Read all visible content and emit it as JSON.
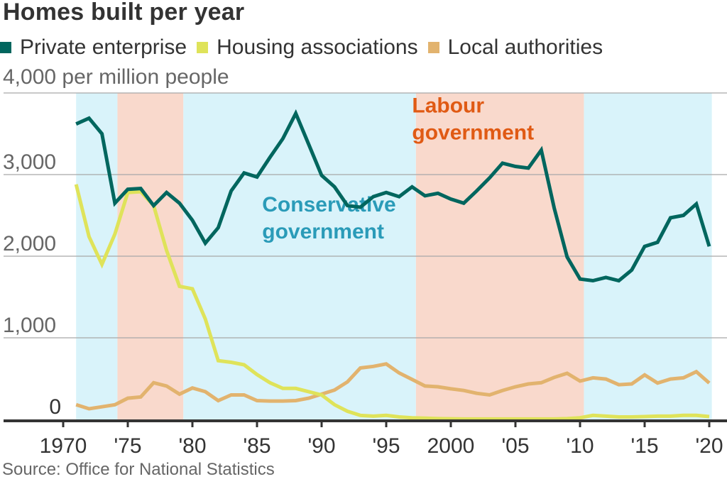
{
  "chart_data": {
    "type": "line",
    "title": "Homes built per year",
    "ylabel": "4,000 per million people",
    "xlabel": "",
    "source": "Source: Office for National Statistics",
    "xlim": [
      1970,
      2020
    ],
    "ylim": [
      0,
      4000
    ],
    "grid": true,
    "legend_position": "top",
    "y_ticks": [
      {
        "value": 0,
        "label": "0"
      },
      {
        "value": 1000,
        "label": "1,000"
      },
      {
        "value": 2000,
        "label": "2,000"
      },
      {
        "value": 3000,
        "label": "3,000"
      },
      {
        "value": 4000,
        "label": "4,000 per million people"
      }
    ],
    "x_ticks": [
      {
        "value": 1970,
        "label": "1970"
      },
      {
        "value": 1975,
        "label": "'75"
      },
      {
        "value": 1980,
        "label": "'80"
      },
      {
        "value": 1985,
        "label": "'85"
      },
      {
        "value": 1990,
        "label": "'90"
      },
      {
        "value": 1995,
        "label": "'95"
      },
      {
        "value": 2000,
        "label": "2000"
      },
      {
        "value": 2005,
        "label": "'05"
      },
      {
        "value": 2010,
        "label": "'10"
      },
      {
        "value": 2015,
        "label": "'15"
      },
      {
        "value": 2020,
        "label": "'20"
      }
    ],
    "x": [
      1971,
      1972,
      1973,
      1974,
      1975,
      1976,
      1977,
      1978,
      1979,
      1980,
      1981,
      1982,
      1983,
      1984,
      1985,
      1986,
      1987,
      1988,
      1989,
      1990,
      1991,
      1992,
      1993,
      1994,
      1995,
      1996,
      1997,
      1998,
      1999,
      2000,
      2001,
      2002,
      2003,
      2004,
      2005,
      2006,
      2007,
      2008,
      2009,
      2010,
      2011,
      2012,
      2013,
      2014,
      2015,
      2016,
      2017,
      2018,
      2019,
      2020
    ],
    "series": [
      {
        "name": "Private enterprise",
        "color": "#00665e",
        "values": [
          3620,
          3690,
          3500,
          2650,
          2820,
          2830,
          2620,
          2780,
          2650,
          2440,
          2160,
          2350,
          2800,
          3020,
          2970,
          3210,
          3440,
          3750,
          3370,
          2990,
          2850,
          2620,
          2600,
          2730,
          2780,
          2730,
          2850,
          2740,
          2770,
          2700,
          2650,
          2800,
          2960,
          3140,
          3100,
          3080,
          3300,
          2590,
          1990,
          1720,
          1700,
          1740,
          1700,
          1830,
          2120,
          2170,
          2470,
          2500,
          2640,
          2120
        ]
      },
      {
        "name": "Housing associations",
        "color": "#dfe35a",
        "values": [
          2880,
          2240,
          1900,
          2270,
          2780,
          2790,
          2620,
          2070,
          1630,
          1600,
          1230,
          720,
          700,
          670,
          550,
          450,
          380,
          380,
          340,
          300,
          180,
          100,
          50,
          40,
          50,
          30,
          20,
          15,
          10,
          8,
          5,
          5,
          5,
          5,
          5,
          5,
          5,
          5,
          10,
          20,
          50,
          40,
          30,
          30,
          35,
          40,
          40,
          50,
          50,
          35
        ]
      },
      {
        "name": "Local authorities",
        "color": "#e2b36e",
        "values": [
          180,
          130,
          155,
          180,
          260,
          275,
          450,
          410,
          310,
          385,
          340,
          230,
          300,
          300,
          230,
          225,
          225,
          230,
          260,
          310,
          360,
          460,
          630,
          650,
          680,
          570,
          490,
          410,
          400,
          375,
          355,
          320,
          300,
          355,
          400,
          435,
          450,
          515,
          565,
          470,
          510,
          495,
          425,
          435,
          545,
          445,
          495,
          510,
          585,
          445
        ]
      }
    ],
    "bands": [
      {
        "party": "Conservative",
        "start": 1971.0,
        "end": 1974.2,
        "color": "#d9f3fa"
      },
      {
        "party": "Labour",
        "start": 1974.2,
        "end": 1979.3,
        "color": "#f9d9cc"
      },
      {
        "party": "Conservative",
        "start": 1979.3,
        "end": 1997.3,
        "color": "#d9f3fa"
      },
      {
        "party": "Labour",
        "start": 1997.3,
        "end": 2010.3,
        "color": "#f9d9cc"
      },
      {
        "party": "Conservative",
        "start": 2010.3,
        "end": 2020.2,
        "color": "#d9f3fa"
      }
    ],
    "annotations": [
      {
        "text_lines": [
          "Conservative",
          "government"
        ],
        "color": "#2a9bb8",
        "anchor_year": 1985.4,
        "anchor_value": 2550
      },
      {
        "text_lines": [
          "Labour",
          "government"
        ],
        "color": "#e05a14",
        "anchor_year": 1997.0,
        "anchor_value": 3760
      }
    ]
  },
  "legend": [
    {
      "label": "Private enterprise",
      "color": "#00665e"
    },
    {
      "label": "Housing associations",
      "color": "#dfe35a"
    },
    {
      "label": "Local authorities",
      "color": "#e2b36e"
    }
  ]
}
